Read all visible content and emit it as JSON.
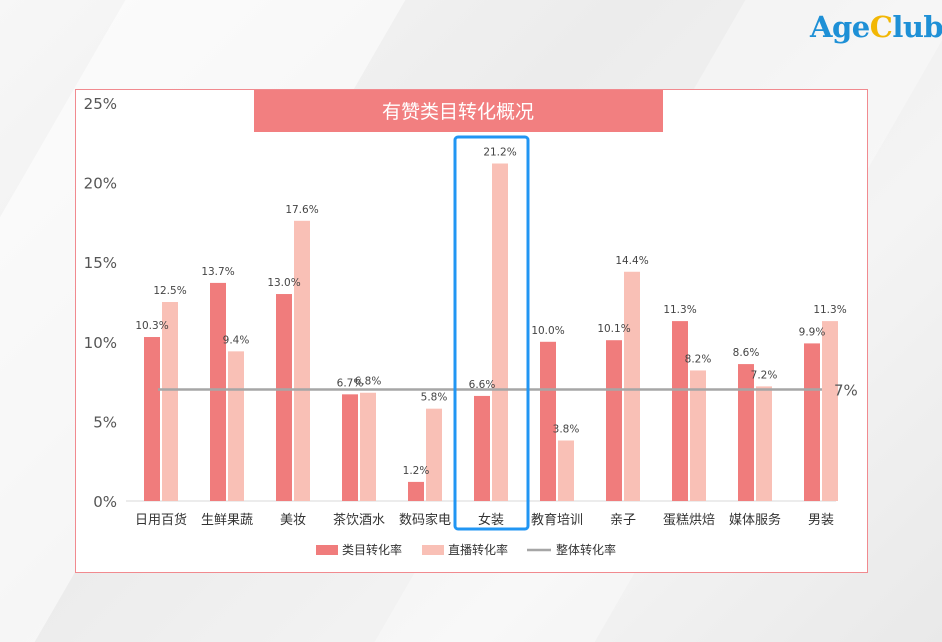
{
  "brand": {
    "part1": "Age",
    "part2": "C",
    "part3": "lub"
  },
  "colors": {
    "category_bar": "#f07c7c",
    "live_bar": "#f9c0b6",
    "reference_line": "#a6a6a6",
    "title_bg": "#f27f80",
    "highlight_box": "#2196f3"
  },
  "chart_data": {
    "type": "bar",
    "title": "有赞类目转化概况",
    "categories": [
      "日用百货",
      "生鲜果蔬",
      "美妆",
      "茶饮酒水",
      "数码家电",
      "女装",
      "教育培训",
      "亲子",
      "蛋糕烘焙",
      "媒体服务",
      "男装"
    ],
    "series": [
      {
        "name": "类目转化率",
        "values": [
          10.3,
          13.7,
          13.0,
          6.7,
          1.2,
          6.6,
          10.0,
          10.1,
          11.3,
          8.6,
          9.9
        ],
        "labels": [
          "10.3%",
          "13.7%",
          "13.0%",
          "6.7%",
          "1.2%",
          "6.6%",
          "10.0%",
          "10.1%",
          "11.3%",
          "8.6%",
          "9.9%"
        ]
      },
      {
        "name": "直播转化率",
        "values": [
          12.5,
          9.4,
          17.6,
          6.8,
          5.8,
          21.2,
          3.8,
          14.4,
          8.2,
          7.2,
          11.3
        ],
        "labels": [
          "12.5%",
          "9.4%",
          "17.6%",
          "6.8%",
          "5.8%",
          "21.2%",
          "3.8%",
          "14.4%",
          "8.2%",
          "7.2%",
          "11.3%"
        ]
      }
    ],
    "reference_line": {
      "name": "整体转化率",
      "value": 7,
      "label": "7%"
    },
    "yticks": [
      "0%",
      "5%",
      "10%",
      "15%",
      "20%",
      "25%"
    ],
    "ylim": [
      0,
      25
    ],
    "highlighted_category": "女装",
    "legend_position": "bottom",
    "grid": false
  }
}
